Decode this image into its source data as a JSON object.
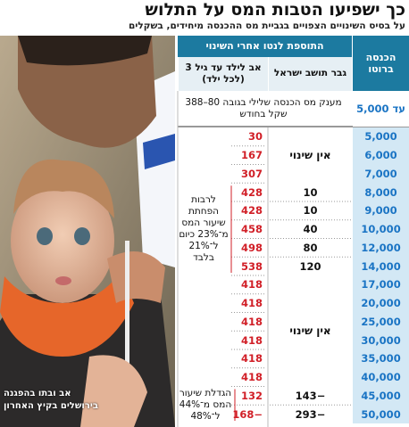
{
  "header": {
    "title": "כך ישפיעו הטבות המס על התלוש",
    "subtitle": "על בסיס השינויים הצפויים בגביית מס ההכנסה מיחידים, בשקלים"
  },
  "table": {
    "headers": {
      "income": "הכנסה ברוטו",
      "group": "התוספת לנטו אחרי השינוי",
      "man": "גבר תושב ישראל",
      "father": "אב לילד עד גיל 3 (לכל ילד)"
    },
    "first_row": {
      "income": "עד 5,000",
      "note": "מענק מס הכנסה שלילי בגובה 80–388 שקל בחודש"
    },
    "rows": [
      {
        "income": "5,000",
        "father": "30"
      },
      {
        "income": "6,000",
        "father": "167"
      },
      {
        "income": "7,000",
        "father": "307"
      },
      {
        "income": "8,000",
        "man": "10",
        "father": "428"
      },
      {
        "income": "9,000",
        "man": "10",
        "father": "428"
      },
      {
        "income": "10,000",
        "man": "40",
        "father": "458"
      },
      {
        "income": "12,000",
        "man": "80",
        "father": "498"
      },
      {
        "income": "14,000",
        "man": "120",
        "father": "538"
      },
      {
        "income": "17,000",
        "father": "418"
      },
      {
        "income": "20,000",
        "father": "418"
      },
      {
        "income": "25,000",
        "father": "418"
      },
      {
        "income": "30,000",
        "father": "418"
      },
      {
        "income": "35,000",
        "father": "418"
      },
      {
        "income": "40,000",
        "father": "418"
      },
      {
        "income": "45,000",
        "man": "−143",
        "father": "132"
      },
      {
        "income": "50,000",
        "man": "−293",
        "father": "−168"
      }
    ],
    "notes": [
      "אין שינוי",
      "לרבות הפחתת שיעור המס מ־23% כיום ל־21% בלבד",
      "אין שינוי",
      "הגדלת שיעור המס מ־44% ל־48%"
    ]
  },
  "photo": {
    "caption": [
      "אב ובתו בהפגנה",
      "בירושלים בקיץ האחרון"
    ]
  }
}
